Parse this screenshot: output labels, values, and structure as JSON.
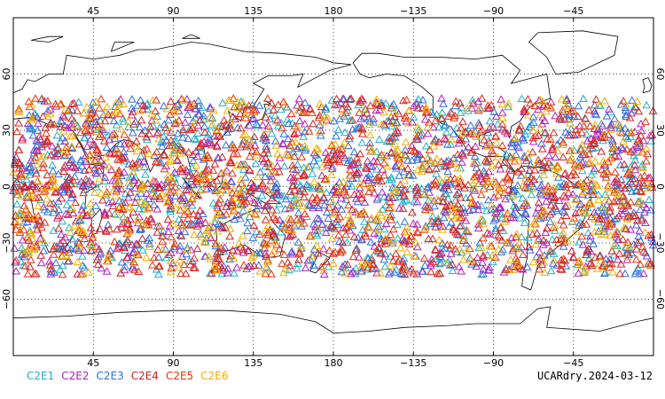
{
  "chart_data": {
    "type": "scatter",
    "projection": "cylindrical-equidistant",
    "central_longitude": 0,
    "lon_range": [
      0,
      360
    ],
    "lat_range": [
      -90,
      90
    ],
    "grid": true,
    "top_lon_labels": [
      "45",
      "90",
      "135",
      "180",
      "−135",
      "−90",
      "−45"
    ],
    "bottom_lon_labels": [
      "45",
      "90",
      "135",
      "180",
      "−135",
      "−90",
      "−45"
    ],
    "lat_labels": [
      "60",
      "30",
      "0",
      "−30",
      "−60"
    ],
    "lat_label_values": [
      60,
      30,
      0,
      -30,
      -60
    ],
    "lon_label_values": [
      45,
      90,
      135,
      180,
      225,
      270,
      315
    ],
    "marker": "triangle",
    "point_density_per_series": 560,
    "lat_band": [
      -47,
      47
    ],
    "series": [
      {
        "name": "C2E1",
        "color": "#1fb0c8"
      },
      {
        "name": "C2E2",
        "color": "#b020c0"
      },
      {
        "name": "C2E3",
        "color": "#2e6fe0"
      },
      {
        "name": "C2E4",
        "color": "#d42020"
      },
      {
        "name": "C2E5",
        "color": "#e83010"
      },
      {
        "name": "C2E6",
        "color": "#f0b000"
      }
    ]
  },
  "footer_label": "UCARdry.2024-03-12"
}
